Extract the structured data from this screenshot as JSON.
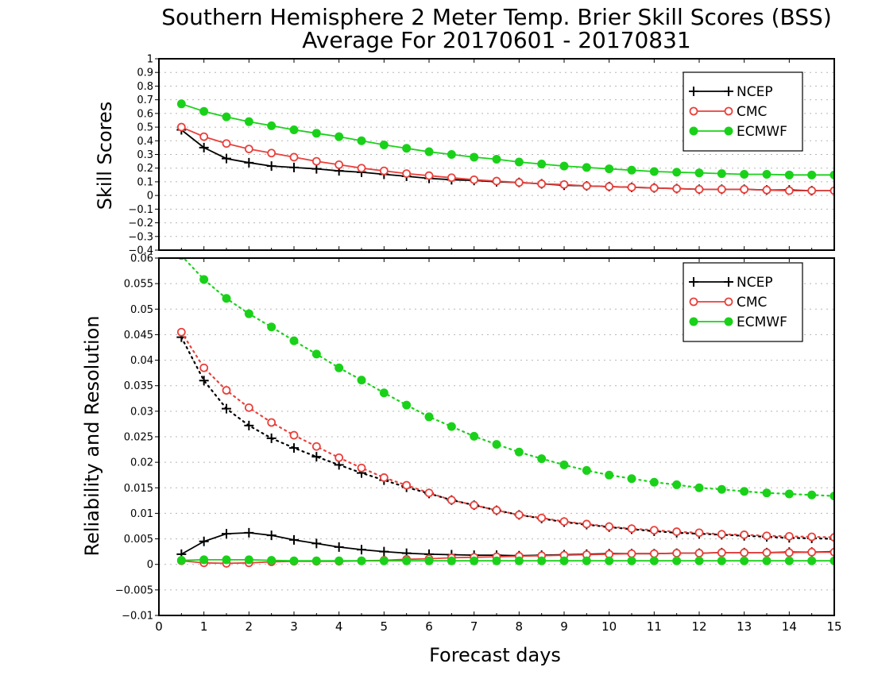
{
  "title_line1": "Southern Hemisphere 2 Meter Temp. Brier Skill Scores (BSS)",
  "title_line2": "Average For 20170601 - 20170831",
  "xlabel": "Forecast days",
  "colors": {
    "NCEP": "#000000",
    "CMC": "#e8413c",
    "ECMWF": "#1ad11a"
  },
  "chart_data": [
    {
      "type": "line",
      "ylabel": "Skill Scores",
      "xlim": [
        0,
        15
      ],
      "ylim": [
        -0.4,
        1
      ],
      "x_ticks": [
        "0",
        "1",
        "2",
        "3",
        "4",
        "5",
        "6",
        "7",
        "8",
        "9",
        "10",
        "11",
        "12",
        "13",
        "14",
        "15"
      ],
      "y_ticks": [
        "−0.4",
        "−0.3",
        "−0.2",
        "−0.1",
        "0",
        "0.1",
        "0.2",
        "0.3",
        "0.4",
        "0.5",
        "0.6",
        "0.7",
        "0.8",
        "0.9",
        "1"
      ],
      "legend": {
        "position": "top-right",
        "entries": [
          "NCEP",
          "CMC",
          "ECMWF"
        ]
      },
      "x": [
        0.5,
        1,
        1.5,
        2,
        2.5,
        3,
        3.5,
        4,
        4.5,
        5,
        5.5,
        6,
        6.5,
        7,
        7.5,
        8,
        8.5,
        9,
        9.5,
        10,
        10.5,
        11,
        11.5,
        12,
        12.5,
        13,
        13.5,
        14,
        14.5,
        15
      ],
      "series": [
        {
          "name": "NCEP",
          "marker": "plus",
          "line": "solid",
          "values": [
            0.48,
            0.35,
            0.27,
            0.24,
            0.215,
            0.205,
            0.195,
            0.18,
            0.17,
            0.155,
            0.14,
            0.125,
            0.115,
            0.11,
            0.1,
            0.095,
            0.085,
            0.075,
            0.07,
            0.065,
            0.06,
            0.055,
            0.05,
            0.045,
            0.045,
            0.045,
            0.04,
            0.04,
            0.035,
            0.035
          ]
        },
        {
          "name": "CMC",
          "marker": "circle-open",
          "line": "solid",
          "values": [
            0.5,
            0.43,
            0.38,
            0.34,
            0.31,
            0.28,
            0.25,
            0.225,
            0.2,
            0.18,
            0.16,
            0.145,
            0.13,
            0.115,
            0.105,
            0.095,
            0.085,
            0.08,
            0.07,
            0.065,
            0.06,
            0.055,
            0.05,
            0.045,
            0.045,
            0.045,
            0.04,
            0.035,
            0.035,
            0.035
          ]
        },
        {
          "name": "ECMWF",
          "marker": "circle-filled",
          "line": "solid",
          "values": [
            0.67,
            0.615,
            0.575,
            0.54,
            0.51,
            0.48,
            0.455,
            0.43,
            0.4,
            0.37,
            0.345,
            0.32,
            0.3,
            0.28,
            0.265,
            0.245,
            0.23,
            0.215,
            0.205,
            0.195,
            0.185,
            0.175,
            0.17,
            0.165,
            0.16,
            0.155,
            0.155,
            0.15,
            0.15,
            0.15
          ]
        }
      ]
    },
    {
      "type": "line",
      "ylabel": "Reliability and Resolution",
      "xlim": [
        0,
        15
      ],
      "ylim": [
        -0.01,
        0.06
      ],
      "x_ticks": [
        "0",
        "1",
        "2",
        "3",
        "4",
        "5",
        "6",
        "7",
        "8",
        "9",
        "10",
        "11",
        "12",
        "13",
        "14",
        "15"
      ],
      "y_ticks": [
        "−0.01",
        "−0.005",
        "0",
        "0.005",
        "0.01",
        "0.015",
        "0.02",
        "0.025",
        "0.03",
        "0.035",
        "0.04",
        "0.045",
        "0.05",
        "0.055",
        "0.06"
      ],
      "legend": {
        "position": "top-right",
        "entries": [
          "NCEP",
          "CMC",
          "ECMWF"
        ]
      },
      "x": [
        0.5,
        1,
        1.5,
        2,
        2.5,
        3,
        3.5,
        4,
        4.5,
        5,
        5.5,
        6,
        6.5,
        7,
        7.5,
        8,
        8.5,
        9,
        9.5,
        10,
        10.5,
        11,
        11.5,
        12,
        12.5,
        13,
        13.5,
        14,
        14.5,
        15
      ],
      "series": [
        {
          "name": "NCEP",
          "kind": "resolution",
          "marker": "plus",
          "line": "dotted",
          "values": [
            0.0445,
            0.036,
            0.0305,
            0.0272,
            0.0247,
            0.0228,
            0.0211,
            0.0195,
            0.0179,
            0.0165,
            0.0151,
            0.0139,
            0.0126,
            0.0116,
            0.0106,
            0.0097,
            0.009,
            0.0083,
            0.0078,
            0.0073,
            0.0069,
            0.0065,
            0.0062,
            0.006,
            0.0058,
            0.0056,
            0.0054,
            0.0052,
            0.0051,
            0.005
          ]
        },
        {
          "name": "CMC",
          "kind": "resolution",
          "marker": "circle-open",
          "line": "dotted",
          "values": [
            0.0455,
            0.0385,
            0.0341,
            0.0307,
            0.0278,
            0.0253,
            0.0231,
            0.0209,
            0.0189,
            0.017,
            0.0155,
            0.014,
            0.0126,
            0.0116,
            0.0106,
            0.0097,
            0.0091,
            0.0084,
            0.0079,
            0.0074,
            0.007,
            0.0067,
            0.0064,
            0.0062,
            0.0059,
            0.0058,
            0.0056,
            0.0055,
            0.0054,
            0.0053
          ]
        },
        {
          "name": "ECMWF",
          "kind": "resolution",
          "marker": "circle-filled",
          "line": "dotted",
          "values": [
            0.0605,
            0.0558,
            0.0521,
            0.0491,
            0.0465,
            0.0438,
            0.0412,
            0.0385,
            0.0361,
            0.0336,
            0.0312,
            0.0289,
            0.027,
            0.0251,
            0.0235,
            0.022,
            0.0207,
            0.0195,
            0.0184,
            0.0175,
            0.0168,
            0.0161,
            0.0156,
            0.015,
            0.0147,
            0.0143,
            0.014,
            0.0138,
            0.0136,
            0.0134
          ]
        },
        {
          "name": "NCEP",
          "kind": "reliability",
          "marker": "plus",
          "line": "solid",
          "values": [
            0.002,
            0.0045,
            0.006,
            0.0062,
            0.0057,
            0.0048,
            0.0041,
            0.0034,
            0.0029,
            0.0025,
            0.0022,
            0.002,
            0.0019,
            0.0018,
            0.0018,
            0.0017,
            0.0018,
            0.0019,
            0.002,
            0.0021,
            0.0021,
            0.0021,
            0.0022,
            0.0022,
            0.0023,
            0.0023,
            0.0023,
            0.0024,
            0.0024,
            0.0025
          ]
        },
        {
          "name": "CMC",
          "kind": "reliability",
          "marker": "circle-open",
          "line": "solid",
          "values": [
            0.0007,
            0.0003,
            0.0002,
            0.0003,
            0.0005,
            0.0006,
            0.0006,
            0.0006,
            0.0007,
            0.0008,
            0.001,
            0.0011,
            0.0013,
            0.0014,
            0.0015,
            0.0016,
            0.0017,
            0.0018,
            0.0019,
            0.002,
            0.0021,
            0.0021,
            0.0022,
            0.0022,
            0.0023,
            0.0023,
            0.0023,
            0.0023,
            0.0024,
            0.0024
          ]
        },
        {
          "name": "ECMWF",
          "kind": "reliability",
          "marker": "circle-filled",
          "line": "solid",
          "values": [
            0.0008,
            0.0009,
            0.0009,
            0.0009,
            0.0008,
            0.0007,
            0.0007,
            0.0007,
            0.0007,
            0.0007,
            0.0007,
            0.0007,
            0.0007,
            0.0007,
            0.0007,
            0.0007,
            0.0007,
            0.0007,
            0.0007,
            0.0007,
            0.0007,
            0.0007,
            0.0007,
            0.0007,
            0.0007,
            0.0007,
            0.0007,
            0.0007,
            0.0007,
            0.0007
          ]
        }
      ]
    }
  ]
}
